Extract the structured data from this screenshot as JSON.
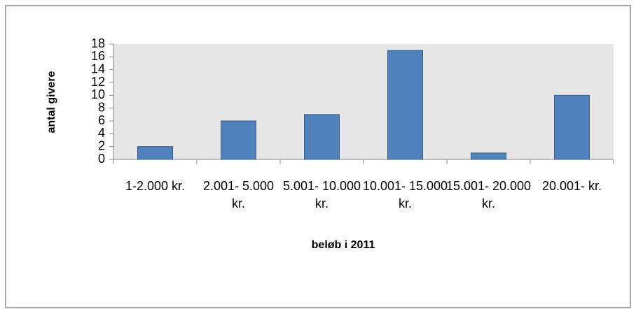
{
  "chart_data": {
    "type": "bar",
    "categories": [
      "1-2.000 kr.",
      "2.001- 5.000 kr.",
      "5.001- 10.000 kr.",
      "10.001- 15.000 kr.",
      "15.001- 20.000 kr.",
      "20.001- kr."
    ],
    "values": [
      2,
      6,
      7,
      17,
      1,
      10
    ],
    "color": "#4f81bd",
    "xlabel": "beløb i 2011",
    "ylabel": "antal givere",
    "ylim": [
      0,
      18
    ],
    "yticks": [
      0,
      2,
      4,
      6,
      8,
      10,
      12,
      14,
      16,
      18
    ],
    "grid": false
  }
}
